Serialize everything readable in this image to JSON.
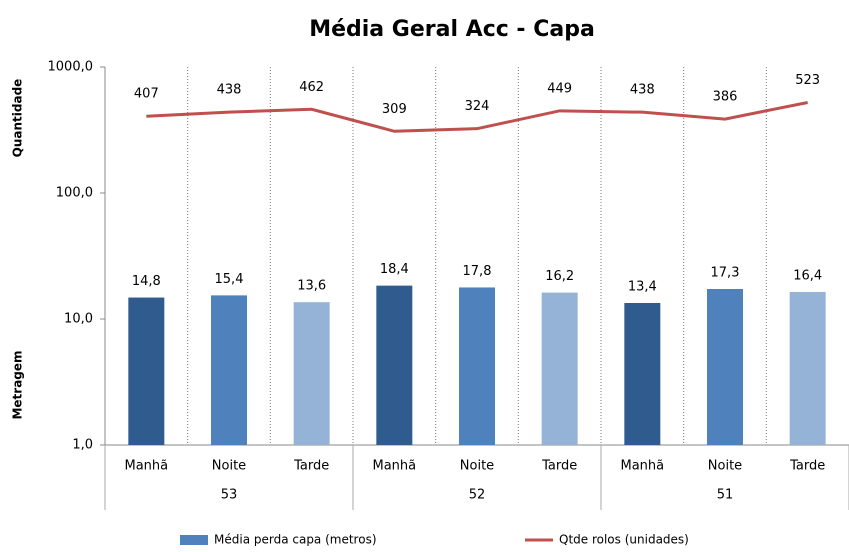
{
  "chart_data": {
    "type": "bar",
    "title": "Média Geral Acc - Capa",
    "y_label_top": "Quantidade",
    "y_label_bottom": "Metragem",
    "categories": [
      "Manhã",
      "Noite",
      "Tarde",
      "Manhã",
      "Noite",
      "Tarde",
      "Manhã",
      "Noite",
      "Tarde"
    ],
    "groups": [
      53,
      52,
      51
    ],
    "bar_colors": [
      "#2f5b8e",
      "#4f81bd",
      "#95b3d7"
    ],
    "series": [
      {
        "name": "Média perda capa (metros)",
        "type": "bar",
        "color": "#4f81bd",
        "values": [
          14.8,
          15.4,
          13.6,
          18.4,
          17.8,
          16.2,
          13.4,
          17.3,
          16.4
        ],
        "value_labels": [
          "14,8",
          "15,4",
          "13,6",
          "18,4",
          "17,8",
          "16,2",
          "13,4",
          "17,3",
          "16,4"
        ]
      },
      {
        "name": "Qtde rolos (unidades)",
        "type": "line",
        "color": "#c0504d",
        "values": [
          407,
          438,
          462,
          309,
          324,
          449,
          438,
          386,
          523
        ]
      }
    ],
    "log_scale": true,
    "ylim": [
      1,
      1000
    ],
    "yticks": [
      {
        "value": 1,
        "label": "1,0"
      },
      {
        "value": 10,
        "label": "10,0"
      },
      {
        "value": 100,
        "label": "100,0"
      },
      {
        "value": 1000,
        "label": "1000,0"
      }
    ]
  }
}
